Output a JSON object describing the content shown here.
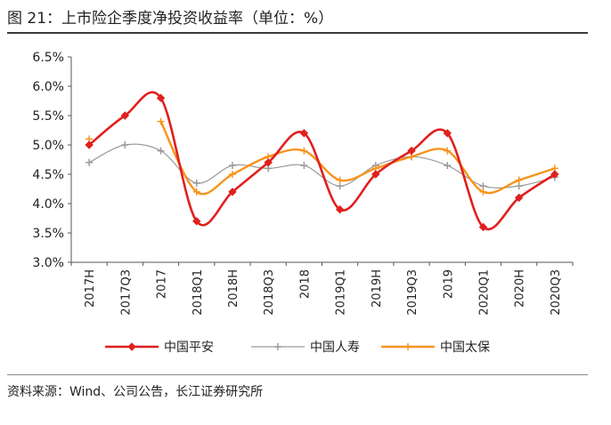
{
  "title": "图 21：上市险企季度净投资收益率（单位：%）",
  "source": "资料来源：Wind、公司公告，长江证券研究所",
  "chart_data": {
    "type": "line",
    "categories": [
      "2017H",
      "2017Q3",
      "2017",
      "2018Q1",
      "2018H",
      "2018Q3",
      "2018",
      "2019Q1",
      "2019H",
      "2019Q3",
      "2019",
      "2020Q1",
      "2020H",
      "2020Q3"
    ],
    "y_tick_labels": [
      "3.0%",
      "3.5%",
      "4.0%",
      "4.5%",
      "5.0%",
      "5.5%",
      "6.0%",
      "6.5%"
    ],
    "ylim": [
      3.0,
      6.5
    ],
    "grid": false,
    "legend_position": "bottom",
    "smooth": true,
    "series": [
      {
        "name": "中国平安",
        "color": "#e0201e",
        "marker": "diamond",
        "values": [
          5.0,
          5.5,
          5.8,
          3.7,
          4.2,
          4.7,
          5.2,
          3.9,
          4.5,
          4.9,
          5.2,
          3.6,
          4.1,
          4.5
        ]
      },
      {
        "name": "中国人寿",
        "color": "#9a9a9a",
        "marker": "plus",
        "values": [
          4.7,
          5.0,
          4.9,
          4.35,
          4.65,
          4.6,
          4.65,
          4.3,
          4.65,
          4.8,
          4.65,
          4.3,
          4.3,
          4.45
        ]
      },
      {
        "name": "中国太保",
        "color": "#f7941d",
        "marker": "plus",
        "values": [
          5.1,
          null,
          5.4,
          4.2,
          4.5,
          4.8,
          4.9,
          4.4,
          4.6,
          4.8,
          4.9,
          4.2,
          4.4,
          4.6
        ]
      }
    ]
  }
}
